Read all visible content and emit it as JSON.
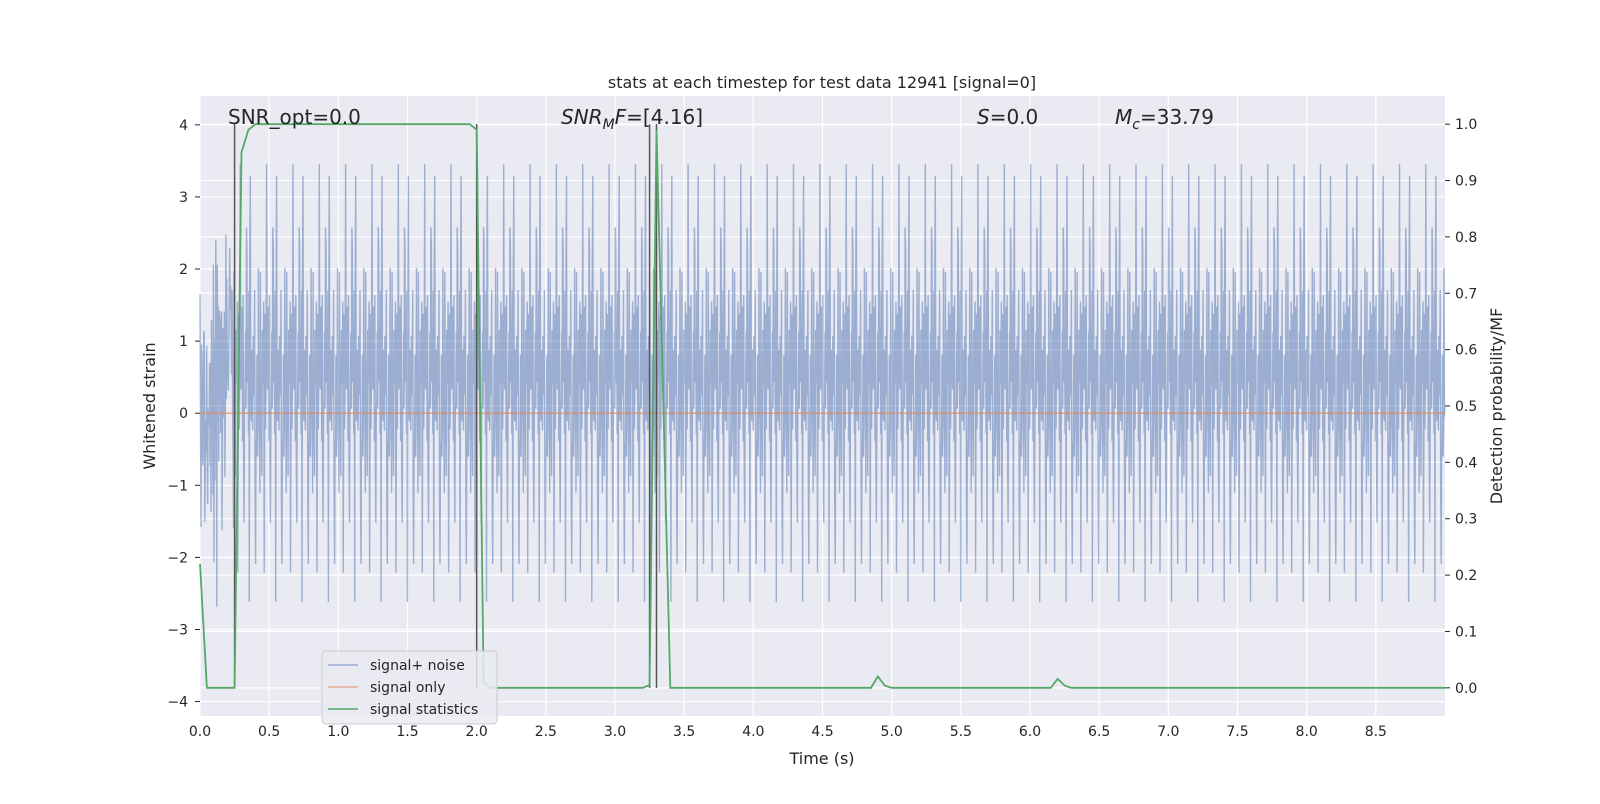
{
  "chart_data": {
    "type": "line",
    "title": "stats at each timestep for test data 12941 [signal=0]",
    "xlabel": "Time (s)",
    "ylabel_left": "Whitened strain",
    "ylabel_right": "Detection probability/MF",
    "xlim": [
      0.0,
      9.0
    ],
    "ylim_left": [
      -4.2,
      4.4
    ],
    "ylim_right": [
      -0.05,
      1.05
    ],
    "x_ticks": [
      "0.0",
      "0.5",
      "1.0",
      "1.5",
      "2.0",
      "2.5",
      "3.0",
      "3.5",
      "4.0",
      "4.5",
      "5.0",
      "5.5",
      "6.0",
      "6.5",
      "7.0",
      "7.5",
      "8.0",
      "8.5"
    ],
    "y_ticks_left": [
      "4",
      "3",
      "2",
      "1",
      "0",
      "−1",
      "−2",
      "−3",
      "−4"
    ],
    "y_ticks_right": [
      "1.0",
      "0.9",
      "0.8",
      "0.7",
      "0.6",
      "0.5",
      "0.4",
      "0.3",
      "0.2",
      "0.1",
      "0.0"
    ],
    "grid": true,
    "legend_placement": "lower-left",
    "series": [
      {
        "name": "signal+ noise",
        "color": "#4c72b0",
        "axis": "left",
        "note": "dense noise trace roughly within -3.7 to 3.8"
      },
      {
        "name": "signal only",
        "color": "#dd8452",
        "axis": "left",
        "x": [
          0.0,
          9.0
        ],
        "y": [
          0.0,
          0.0
        ]
      },
      {
        "name": "signal statistics",
        "color": "#55a868",
        "axis": "right",
        "x": [
          0.0,
          0.05,
          0.25,
          0.3,
          0.35,
          0.4,
          0.45,
          1.95,
          2.0,
          2.05,
          2.1,
          3.2,
          3.25,
          3.3,
          3.35,
          3.4,
          3.45,
          4.85,
          4.9,
          4.95,
          5.0,
          6.15,
          6.2,
          6.25,
          6.3,
          9.0
        ],
        "y": [
          0.22,
          0.0,
          0.0,
          0.95,
          0.99,
          1.0,
          1.0,
          1.0,
          0.99,
          0.01,
          0.0,
          0.0,
          0.005,
          0.99,
          0.5,
          0.0,
          0.0,
          0.0,
          0.02,
          0.004,
          0.0,
          0.0,
          0.016,
          0.004,
          0.0,
          0.0
        ]
      }
    ],
    "markers": {
      "color": "#555555",
      "x": [
        0.25,
        2.0,
        3.25,
        3.3
      ]
    },
    "annotations": {
      "snr_opt": "SNR_opt=0.0",
      "snr_mf_main": "SNR",
      "snr_mf_sub": "M",
      "snr_mf_f": "F",
      "snr_mf_value": "=[4.16]",
      "s_var": "S",
      "s_value": "=0.0",
      "mc_main": "M",
      "mc_sub": "c",
      "mc_value": "=33.79"
    },
    "colors": {
      "background": "#eaeaf2",
      "grid": "#ffffff",
      "text": "#262626"
    }
  }
}
